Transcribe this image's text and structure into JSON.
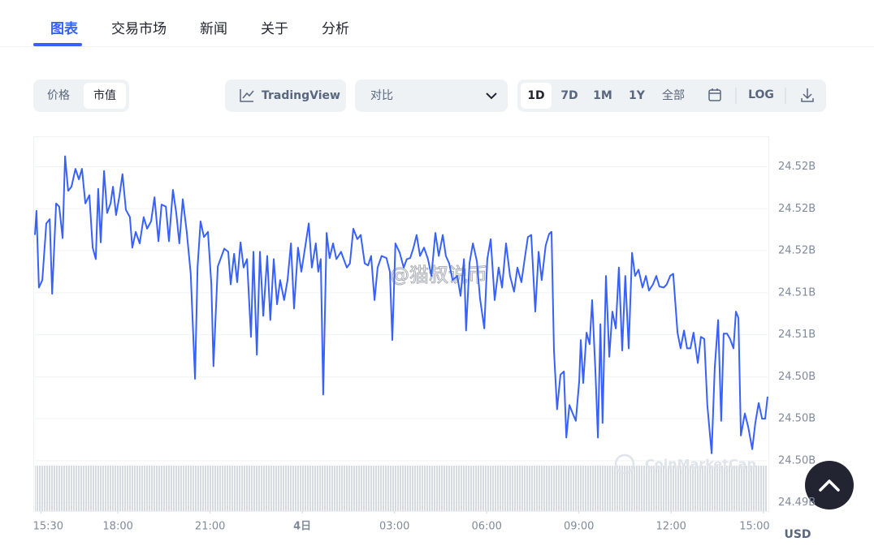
{
  "tabs": [
    "图表",
    "交易市场",
    "新闻",
    "关于",
    "分析"
  ],
  "toggle": [
    "价格",
    "市值"
  ],
  "tradingview": "TradingView",
  "compare": "对比",
  "ranges": [
    "1D",
    "7D",
    "1M",
    "1Y",
    "全部"
  ],
  "log": "LOG",
  "currency": "USD",
  "watermarks": [
    "@猫叔说币",
    "CoinMarketCap"
  ],
  "chart_data": {
    "type": "line",
    "color": "#3861fb",
    "grid": true,
    "xlim": [
      15.3,
      39.14
    ],
    "ylim": [
      24.4917,
      24.5274
    ],
    "xticks": [
      {
        "value": 15.5,
        "label": "15:30"
      },
      {
        "value": 18,
        "label": "18:00"
      },
      {
        "value": 21,
        "label": "21:00"
      },
      {
        "value": 24,
        "label": "4日"
      },
      {
        "value": 27,
        "label": "03:00"
      },
      {
        "value": 30,
        "label": "06:00"
      },
      {
        "value": 33,
        "label": "09:00"
      },
      {
        "value": 36,
        "label": "12:00"
      },
      {
        "value": 39,
        "label": "15:00"
      }
    ],
    "yticks": [
      {
        "value": 24.4925,
        "label": "24.49B"
      },
      {
        "value": 24.4965,
        "label": "24.50B"
      },
      {
        "value": 24.5005,
        "label": "24.50B"
      },
      {
        "value": 24.5045,
        "label": "24.50B"
      },
      {
        "value": 24.5085,
        "label": "24.51B"
      },
      {
        "value": 24.5125,
        "label": "24.51B"
      },
      {
        "value": 24.5165,
        "label": "24.52B"
      },
      {
        "value": 24.5205,
        "label": "24.52B"
      },
      {
        "value": 24.5245,
        "label": "24.52B"
      }
    ],
    "x": [
      15.3,
      15.35,
      15.43,
      15.54,
      15.67,
      15.78,
      15.86,
      15.99,
      16.09,
      16.2,
      16.28,
      16.38,
      16.49,
      16.62,
      16.73,
      16.83,
      16.94,
      17.07,
      17.18,
      17.28,
      17.36,
      17.44,
      17.55,
      17.65,
      17.76,
      17.84,
      17.94,
      18.05,
      18.15,
      18.26,
      18.39,
      18.47,
      18.58,
      18.71,
      18.84,
      18.95,
      19.08,
      19.19,
      19.32,
      19.42,
      19.56,
      19.66,
      19.79,
      19.9,
      20.0,
      20.11,
      20.24,
      20.37,
      20.51,
      20.59,
      20.69,
      20.8,
      20.93,
      21.04,
      21.11,
      21.25,
      21.35,
      21.46,
      21.59,
      21.67,
      21.78,
      21.88,
      21.99,
      22.09,
      22.2,
      22.33,
      22.41,
      22.52,
      22.62,
      22.73,
      22.86,
      22.96,
      23.07,
      23.18,
      23.28,
      23.41,
      23.52,
      23.63,
      23.73,
      23.86,
      23.97,
      24.07,
      24.21,
      24.31,
      24.44,
      24.52,
      24.6,
      24.68,
      24.79,
      24.89,
      25.0,
      25.11,
      25.26,
      25.45,
      25.55,
      25.66,
      25.79,
      25.9,
      26.03,
      26.14,
      26.24,
      26.35,
      26.45,
      26.58,
      26.74,
      26.85,
      26.93,
      27.03,
      27.17,
      27.3,
      27.4,
      27.51,
      27.62,
      27.72,
      27.83,
      27.96,
      28.09,
      28.2,
      28.33,
      28.44,
      28.57,
      28.67,
      28.78,
      28.89,
      29.04,
      29.15,
      29.26,
      29.33,
      29.44,
      29.55,
      29.68,
      29.78,
      29.92,
      30.02,
      30.13,
      30.26,
      30.39,
      30.5,
      30.63,
      30.76,
      30.89,
      31.0,
      31.13,
      31.24,
      31.34,
      31.45,
      31.58,
      31.69,
      31.79,
      31.92,
      32.03,
      32.11,
      32.19,
      32.29,
      32.4,
      32.51,
      32.59,
      32.69,
      32.8,
      32.9,
      33.01,
      33.06,
      33.14,
      33.25,
      33.35,
      33.43,
      33.54,
      33.62,
      33.7,
      33.77,
      33.88,
      33.99,
      34.09,
      34.2,
      34.3,
      34.41,
      34.51,
      34.62,
      34.73,
      34.83,
      34.94,
      35.07,
      35.18,
      35.28,
      35.41,
      35.52,
      35.62,
      35.76,
      35.86,
      35.97,
      36.07,
      36.21,
      36.31,
      36.42,
      36.52,
      36.63,
      36.73,
      36.87,
      36.97,
      37.08,
      37.18,
      37.32,
      37.42,
      37.53,
      37.63,
      37.71,
      37.82,
      37.92,
      38.03,
      38.11,
      38.19,
      38.27,
      38.4,
      38.51,
      38.64,
      38.74,
      38.85,
      38.96,
      39.06,
      39.14
    ],
    "values": [
      24.518,
      24.5203,
      24.513,
      24.5137,
      24.5191,
      24.5195,
      24.5124,
      24.521,
      24.5207,
      24.5177,
      24.5255,
      24.5222,
      24.5226,
      24.5243,
      24.5233,
      24.5243,
      24.521,
      24.5218,
      24.5168,
      24.5157,
      24.5224,
      24.5173,
      24.5241,
      24.5201,
      24.521,
      24.5226,
      24.5199,
      24.5217,
      24.5238,
      24.5204,
      24.5197,
      24.5168,
      24.5183,
      24.5172,
      24.5197,
      24.5186,
      24.5193,
      24.5216,
      24.5174,
      24.5209,
      24.5207,
      24.5174,
      24.5223,
      24.5201,
      24.5172,
      24.5214,
      24.5183,
      24.5143,
      24.5043,
      24.5149,
      24.5193,
      24.5178,
      24.5183,
      24.5133,
      24.5055,
      24.515,
      24.5158,
      24.5167,
      24.5164,
      24.5133,
      24.5162,
      24.5135,
      24.5173,
      24.5149,
      24.5157,
      24.5083,
      24.5164,
      24.5066,
      24.5164,
      24.5103,
      24.516,
      24.5099,
      24.5157,
      24.5114,
      24.5137,
      24.5118,
      24.5137,
      24.5172,
      24.511,
      24.5168,
      24.5145,
      24.5164,
      24.5191,
      24.5149,
      24.5172,
      24.5145,
      24.5157,
      24.5028,
      24.5182,
      24.5158,
      24.5172,
      24.5157,
      24.5164,
      24.5149,
      24.5153,
      24.5186,
      24.5176,
      24.518,
      24.5153,
      24.5151,
      24.516,
      24.5118,
      24.5149,
      24.516,
      24.5158,
      24.5145,
      24.508,
      24.5172,
      24.5163,
      24.5149,
      24.5157,
      24.5158,
      24.5168,
      24.518,
      24.516,
      24.5168,
      24.5157,
      24.5141,
      24.5182,
      24.516,
      24.518,
      24.516,
      24.5153,
      24.5137,
      24.5141,
      24.5122,
      24.5157,
      24.5089,
      24.5153,
      24.5172,
      24.5155,
      24.512,
      24.5091,
      24.5157,
      24.5176,
      24.5118,
      24.5149,
      24.513,
      24.5172,
      24.5141,
      24.5126,
      24.5149,
      24.5135,
      24.5158,
      24.5178,
      24.518,
      24.5107,
      24.5164,
      24.5137,
      24.517,
      24.5181,
      24.5183,
      24.507,
      24.5014,
      24.5047,
      24.505,
      24.4987,
      24.5018,
      24.501,
      24.5003,
      24.5041,
      24.508,
      24.5039,
      24.5087,
      24.5076,
      24.5118,
      24.5049,
      24.4987,
      24.5095,
      24.5001,
      24.5141,
      24.5064,
      24.5107,
      24.5091,
      24.5149,
      24.507,
      24.5141,
      24.5072,
      24.5163,
      24.5141,
      24.5147,
      24.513,
      24.5141,
      24.5127,
      24.5133,
      24.5141,
      24.5131,
      24.513,
      24.5133,
      24.5141,
      24.5143,
      24.5087,
      24.5072,
      24.5089,
      24.5072,
      24.5072,
      24.5087,
      24.5058,
      24.5083,
      24.5081,
      24.5018,
      24.4972,
      24.5053,
      24.5099,
      24.5003,
      24.5086,
      24.5086,
      24.5081,
      24.5072,
      24.5107,
      24.5101,
      24.4989,
      24.501,
      24.4997,
      24.4976,
      24.5001,
      24.502,
      24.5005,
      24.5005,
      24.5026
    ]
  }
}
